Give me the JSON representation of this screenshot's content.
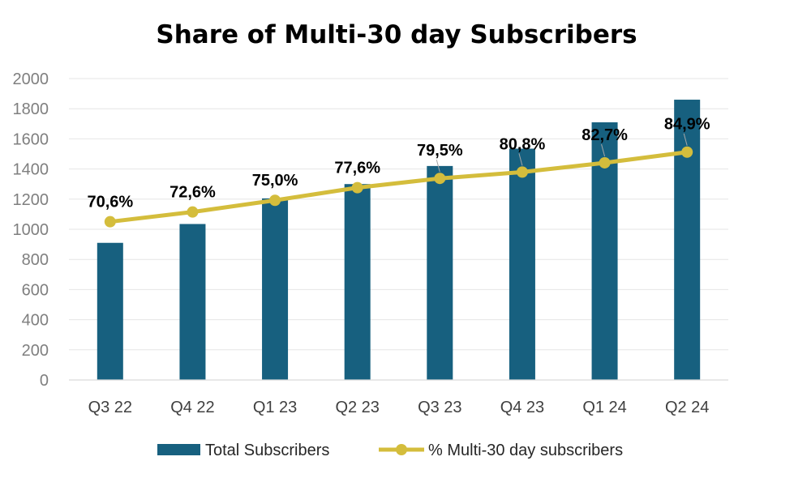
{
  "chart_data": {
    "type": "bar",
    "title": "Share of Multi-30 day Subscribers",
    "categories": [
      "Q3 22",
      "Q4 22",
      "Q1 23",
      "Q2 23",
      "Q3 23",
      "Q4 23",
      "Q1 24",
      "Q2 24"
    ],
    "series": [
      {
        "name": "Total Subscribers",
        "type": "bar",
        "values": [
          910,
          1035,
          1205,
          1300,
          1420,
          1535,
          1710,
          1860
        ],
        "color": "#17607f"
      },
      {
        "name": "% Multi-30 day subscribers",
        "type": "line",
        "values": [
          70.6,
          72.6,
          75.0,
          77.6,
          79.5,
          80.8,
          82.7,
          84.9
        ],
        "labels": [
          "70,6%",
          "72,6%",
          "75,0%",
          "77,6%",
          "79,5%",
          "80,8%",
          "82,7%",
          "84,9%"
        ],
        "color": "#d4bd3c"
      }
    ],
    "ylim": [
      0,
      2000
    ],
    "yticks": [
      "0",
      "200",
      "400",
      "600",
      "800",
      "1000",
      "1200",
      "1400",
      "1600",
      "1800",
      "2000"
    ],
    "grid": true,
    "legend": "bottom"
  }
}
